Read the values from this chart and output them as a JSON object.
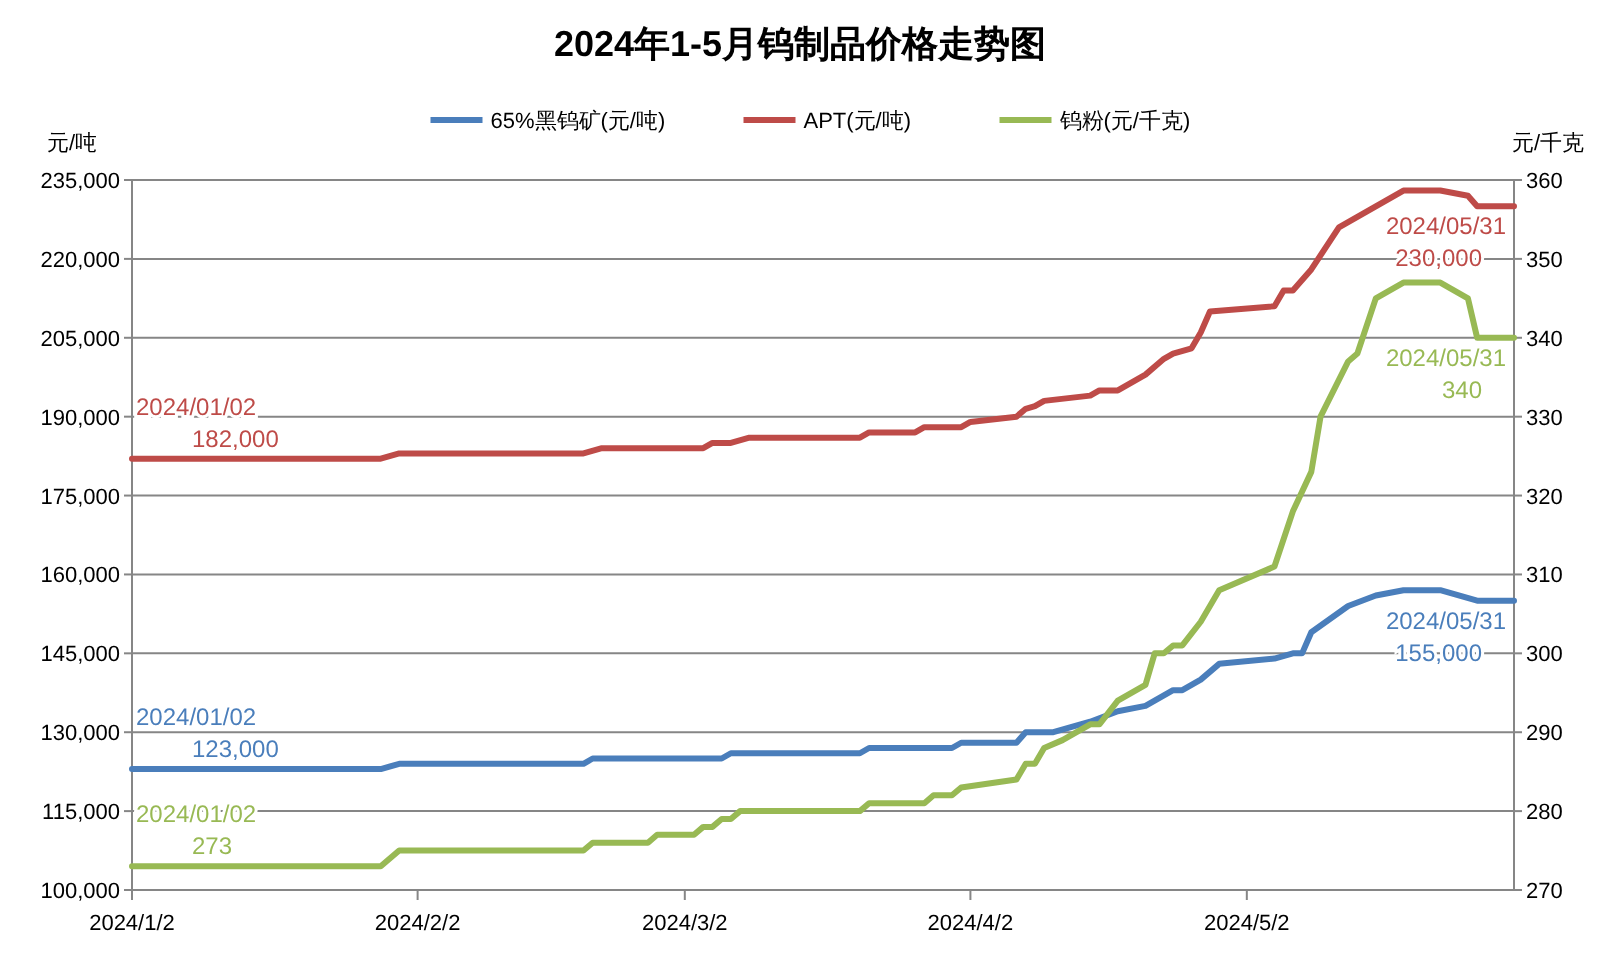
{
  "chart_data": {
    "type": "line",
    "title": "2024年1-5月钨制品价格走势图",
    "ylabel": "元/吨",
    "y2label": "元/千克",
    "legend": "top",
    "grid": "y",
    "line_style": "solid",
    "marker": "none",
    "xlim": [
      "2024-01-02",
      "2024-05-31"
    ],
    "xticks": [
      {
        "value": "2024-01-02",
        "label": "2024/1/2"
      },
      {
        "value": "2024-02-02",
        "label": "2024/2/2"
      },
      {
        "value": "2024-03-02",
        "label": "2024/3/2"
      },
      {
        "value": "2024-04-02",
        "label": "2024/4/2"
      },
      {
        "value": "2024-05-02",
        "label": "2024/5/2"
      }
    ],
    "ylim": [
      100000,
      235000
    ],
    "yticks": [
      {
        "value": 100000,
        "label": "100,000"
      },
      {
        "value": 115000,
        "label": "115,000"
      },
      {
        "value": 130000,
        "label": "130,000"
      },
      {
        "value": 145000,
        "label": "145,000"
      },
      {
        "value": 160000,
        "label": "160,000"
      },
      {
        "value": 175000,
        "label": "175,000"
      },
      {
        "value": 190000,
        "label": "190,000"
      },
      {
        "value": 205000,
        "label": "205,000"
      },
      {
        "value": 220000,
        "label": "220,000"
      },
      {
        "value": 235000,
        "label": "235,000"
      }
    ],
    "y2lim": [
      270,
      360
    ],
    "y2ticks": [
      270,
      280,
      290,
      300,
      310,
      320,
      330,
      340,
      350,
      360
    ],
    "series": [
      {
        "name": "65%黑钨矿(元/吨)",
        "color": "#4a7ebb",
        "axis": "y",
        "x": [
          "2024-01-02",
          "2024-01-29",
          "2024-01-31",
          "2024-02-20",
          "2024-02-21",
          "2024-03-06",
          "2024-03-07",
          "2024-03-21",
          "2024-03-22",
          "2024-03-31",
          "2024-04-01",
          "2024-04-07",
          "2024-04-08",
          "2024-04-11",
          "2024-04-15",
          "2024-04-18",
          "2024-04-21",
          "2024-04-24",
          "2024-04-25",
          "2024-04-27",
          "2024-04-29",
          "2024-05-05",
          "2024-05-07",
          "2024-05-08",
          "2024-05-09",
          "2024-05-13",
          "2024-05-16",
          "2024-05-19",
          "2024-05-23",
          "2024-05-25",
          "2024-05-27",
          "2024-05-31"
        ],
        "values": [
          123000,
          123000,
          124000,
          124000,
          125000,
          125000,
          126000,
          126000,
          127000,
          127000,
          128000,
          128000,
          130000,
          130000,
          132000,
          134000,
          135000,
          138000,
          138000,
          140000,
          143000,
          144000,
          145000,
          145000,
          149000,
          154000,
          156000,
          157000,
          157000,
          156000,
          155000,
          155000
        ],
        "value_labels": [
          "2024/01/02\n123,000",
          null,
          null,
          null,
          null,
          null,
          null,
          null,
          null,
          null,
          null,
          null,
          null,
          null,
          null,
          null,
          null,
          null,
          null,
          null,
          null,
          null,
          null,
          null,
          null,
          null,
          null,
          null,
          null,
          null,
          null,
          "2024/05/31\n155,000"
        ]
      },
      {
        "name": "APT(元/吨)",
        "color": "#be4b48",
        "axis": "y",
        "x": [
          "2024-01-02",
          "2024-01-29",
          "2024-01-31",
          "2024-02-20",
          "2024-02-22",
          "2024-03-04",
          "2024-03-05",
          "2024-03-07",
          "2024-03-09",
          "2024-03-21",
          "2024-03-22",
          "2024-03-27",
          "2024-03-28",
          "2024-04-01",
          "2024-04-02",
          "2024-04-07",
          "2024-04-08",
          "2024-04-09",
          "2024-04-10",
          "2024-04-15",
          "2024-04-16",
          "2024-04-18",
          "2024-04-21",
          "2024-04-23",
          "2024-04-24",
          "2024-04-26",
          "2024-04-27",
          "2024-04-28",
          "2024-05-05",
          "2024-05-06",
          "2024-05-07",
          "2024-05-09",
          "2024-05-12",
          "2024-05-15",
          "2024-05-19",
          "2024-05-23",
          "2024-05-26",
          "2024-05-27",
          "2024-05-31"
        ],
        "values": [
          182000,
          182000,
          183000,
          183000,
          184000,
          184000,
          185000,
          185000,
          186000,
          186000,
          187000,
          187000,
          188000,
          188000,
          189000,
          190000,
          191500,
          192000,
          193000,
          194000,
          195000,
          195000,
          198000,
          201000,
          202000,
          203000,
          206000,
          210000,
          211000,
          214000,
          214000,
          218000,
          226000,
          229000,
          233000,
          233000,
          232000,
          230000,
          230000
        ],
        "value_labels": [
          "2024/01/02\n182,000",
          null,
          null,
          null,
          null,
          null,
          null,
          null,
          null,
          null,
          null,
          null,
          null,
          null,
          null,
          null,
          null,
          null,
          null,
          null,
          null,
          null,
          null,
          null,
          null,
          null,
          null,
          null,
          null,
          null,
          null,
          null,
          null,
          null,
          null,
          null,
          null,
          null,
          "2024/05/31\n230,000"
        ]
      },
      {
        "name": "钨粉(元/千克)",
        "color": "#98b954",
        "axis": "y2",
        "x": [
          "2024-01-02",
          "2024-01-29",
          "2024-01-31",
          "2024-02-20",
          "2024-02-21",
          "2024-02-27",
          "2024-02-28",
          "2024-03-03",
          "2024-03-04",
          "2024-03-05",
          "2024-03-06",
          "2024-03-07",
          "2024-03-08",
          "2024-03-21",
          "2024-03-22",
          "2024-03-28",
          "2024-03-29",
          "2024-03-31",
          "2024-04-01",
          "2024-04-07",
          "2024-04-08",
          "2024-04-09",
          "2024-04-10",
          "2024-04-12",
          "2024-04-15",
          "2024-04-16",
          "2024-04-18",
          "2024-04-21",
          "2024-04-22",
          "2024-04-23",
          "2024-04-24",
          "2024-04-25",
          "2024-04-27",
          "2024-04-29",
          "2024-05-05",
          "2024-05-07",
          "2024-05-09",
          "2024-05-10",
          "2024-05-13",
          "2024-05-14",
          "2024-05-16",
          "2024-05-19",
          "2024-05-23",
          "2024-05-26",
          "2024-05-27",
          "2024-05-31"
        ],
        "values": [
          273,
          273,
          275,
          275,
          276,
          276,
          277,
          277,
          278,
          278,
          279,
          279,
          280,
          280,
          281,
          281,
          282,
          282,
          283,
          284,
          286,
          286,
          288,
          289,
          291,
          291,
          294,
          296,
          300,
          300,
          301,
          301,
          304,
          308,
          311,
          318,
          323,
          330,
          337,
          338,
          345,
          347,
          347,
          345,
          340,
          340
        ],
        "value_labels": [
          "2024/01/02\n273",
          null,
          null,
          null,
          null,
          null,
          null,
          null,
          null,
          null,
          null,
          null,
          null,
          null,
          null,
          null,
          null,
          null,
          null,
          null,
          null,
          null,
          null,
          null,
          null,
          null,
          null,
          null,
          null,
          null,
          null,
          null,
          null,
          null,
          null,
          null,
          null,
          null,
          null,
          null,
          null,
          null,
          null,
          null,
          null,
          "2024/05/31\n340"
        ]
      }
    ]
  }
}
